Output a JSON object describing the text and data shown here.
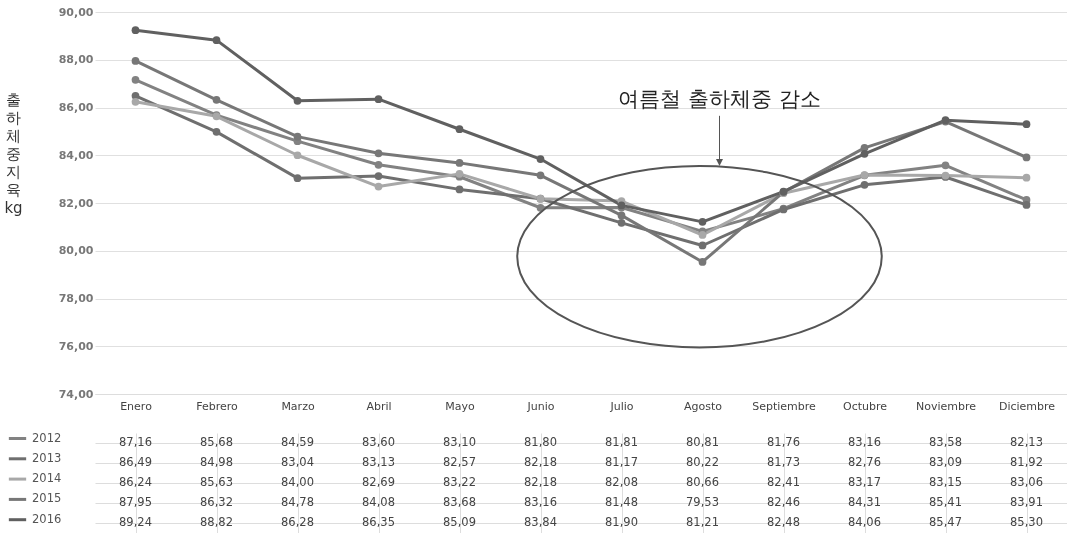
{
  "chart_data": {
    "type": "line",
    "ylabel": "출하체중 지육 kg",
    "categories": [
      "Enero",
      "Febrero",
      "Marzo",
      "Abril",
      "Mayo",
      "Junio",
      "Julio",
      "Agosto",
      "Septiembre",
      "Octubre",
      "Noviembre",
      "Diciembre"
    ],
    "series": [
      {
        "name": "2012",
        "color": "#828282",
        "values": [
          87.16,
          85.68,
          84.59,
          83.6,
          83.1,
          81.8,
          81.81,
          80.81,
          81.76,
          83.16,
          83.58,
          82.13
        ],
        "value_labels": [
          "87,16",
          "85,68",
          "84,59",
          "83,60",
          "83,10",
          "81,80",
          "81,81",
          "80,81",
          "81,76",
          "83,16",
          "83,58",
          "82,13"
        ]
      },
      {
        "name": "2013",
        "color": "#6f6f6f",
        "values": [
          86.49,
          84.98,
          83.04,
          83.13,
          82.57,
          82.18,
          81.17,
          80.22,
          81.73,
          82.76,
          83.09,
          81.92
        ],
        "value_labels": [
          "86,49",
          "84,98",
          "83,04",
          "83,13",
          "82,57",
          "82,18",
          "81,17",
          "80,22",
          "81,73",
          "82,76",
          "83,09",
          "81,92"
        ]
      },
      {
        "name": "2014",
        "color": "#a8a8a8",
        "values": [
          86.24,
          85.63,
          84.0,
          82.69,
          83.22,
          82.18,
          82.08,
          80.66,
          82.41,
          83.17,
          83.15,
          83.06
        ],
        "value_labels": [
          "86,24",
          "85,63",
          "84,00",
          "82,69",
          "83,22",
          "82,18",
          "82,08",
          "80,66",
          "82,41",
          "83,17",
          "83,15",
          "83,06"
        ]
      },
      {
        "name": "2015",
        "color": "#777777",
        "values": [
          87.95,
          86.32,
          84.78,
          84.08,
          83.68,
          83.16,
          81.48,
          79.53,
          82.46,
          84.31,
          85.41,
          83.91
        ],
        "value_labels": [
          "87,95",
          "86,32",
          "84,78",
          "84,08",
          "83,68",
          "83,16",
          "81,48",
          "79,53",
          "82,46",
          "84,31",
          "85,41",
          "83,91"
        ]
      },
      {
        "name": "2016",
        "color": "#606060",
        "values": [
          89.24,
          88.82,
          86.28,
          86.35,
          85.09,
          83.84,
          81.9,
          81.21,
          82.48,
          84.06,
          85.47,
          85.3
        ],
        "value_labels": [
          "89,24",
          "88,82",
          "86,28",
          "86,35",
          "85,09",
          "83,84",
          "81,90",
          "81,21",
          "82,48",
          "84,06",
          "85,47",
          "85,30"
        ]
      }
    ],
    "ylim": [
      74,
      90
    ],
    "yticks": [
      {
        "value": 74,
        "label": "74,00"
      },
      {
        "value": 76,
        "label": "76,00"
      },
      {
        "value": 78,
        "label": "78,00"
      },
      {
        "value": 80,
        "label": "80,00"
      },
      {
        "value": 82,
        "label": "82,00"
      },
      {
        "value": 84,
        "label": "84,00"
      },
      {
        "value": 86,
        "label": "86,00"
      },
      {
        "value": 88,
        "label": "88,00"
      },
      {
        "value": 90,
        "label": "90,00"
      }
    ],
    "grid": "y",
    "marker": "circle",
    "line_style": "solid",
    "legend": "bottom left",
    "annotations": [
      "여름철 출하체중 감소"
    ]
  }
}
